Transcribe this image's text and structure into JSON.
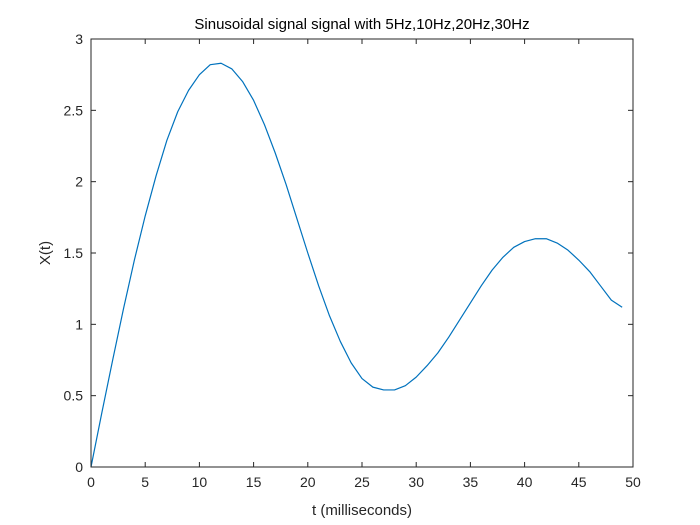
{
  "chart_data": {
    "type": "line",
    "title": "Sinusoidal signal signal with 5Hz,10Hz,20Hz,30Hz",
    "xlabel": "t (milliseconds)",
    "ylabel": "X(t)",
    "xlim": [
      0,
      50
    ],
    "ylim": [
      0,
      3
    ],
    "xticks": [
      "0",
      "5",
      "10",
      "15",
      "20",
      "25",
      "30",
      "35",
      "40",
      "45",
      "50"
    ],
    "yticks": [
      "0",
      "0.5",
      "1",
      "1.5",
      "2",
      "2.5",
      "3"
    ],
    "grid": false,
    "legend": "none",
    "series": [
      {
        "color": "#0072bd",
        "x": [
          0,
          1,
          2,
          3,
          4,
          5,
          6,
          7,
          8,
          9,
          10,
          11,
          12,
          13,
          14,
          15,
          16,
          17,
          18,
          19,
          20,
          21,
          22,
          23,
          24,
          25,
          26,
          27,
          28,
          29,
          30,
          31,
          32,
          33,
          34,
          35,
          36,
          37,
          38,
          39,
          40,
          41,
          42,
          43,
          44,
          45,
          46,
          47,
          48,
          49
        ],
        "y": [
          0,
          0.38,
          0.75,
          1.11,
          1.45,
          1.76,
          2.04,
          2.29,
          2.49,
          2.64,
          2.75,
          2.82,
          2.83,
          2.79,
          2.7,
          2.57,
          2.4,
          2.2,
          1.98,
          1.74,
          1.5,
          1.27,
          1.06,
          0.88,
          0.73,
          0.62,
          0.56,
          0.54,
          0.54,
          0.57,
          0.63,
          0.71,
          0.8,
          0.91,
          1.03,
          1.15,
          1.27,
          1.38,
          1.47,
          1.54,
          1.58,
          1.6,
          1.6,
          1.57,
          1.52,
          1.45,
          1.37,
          1.27,
          1.17,
          1.12
        ]
      }
    ]
  }
}
